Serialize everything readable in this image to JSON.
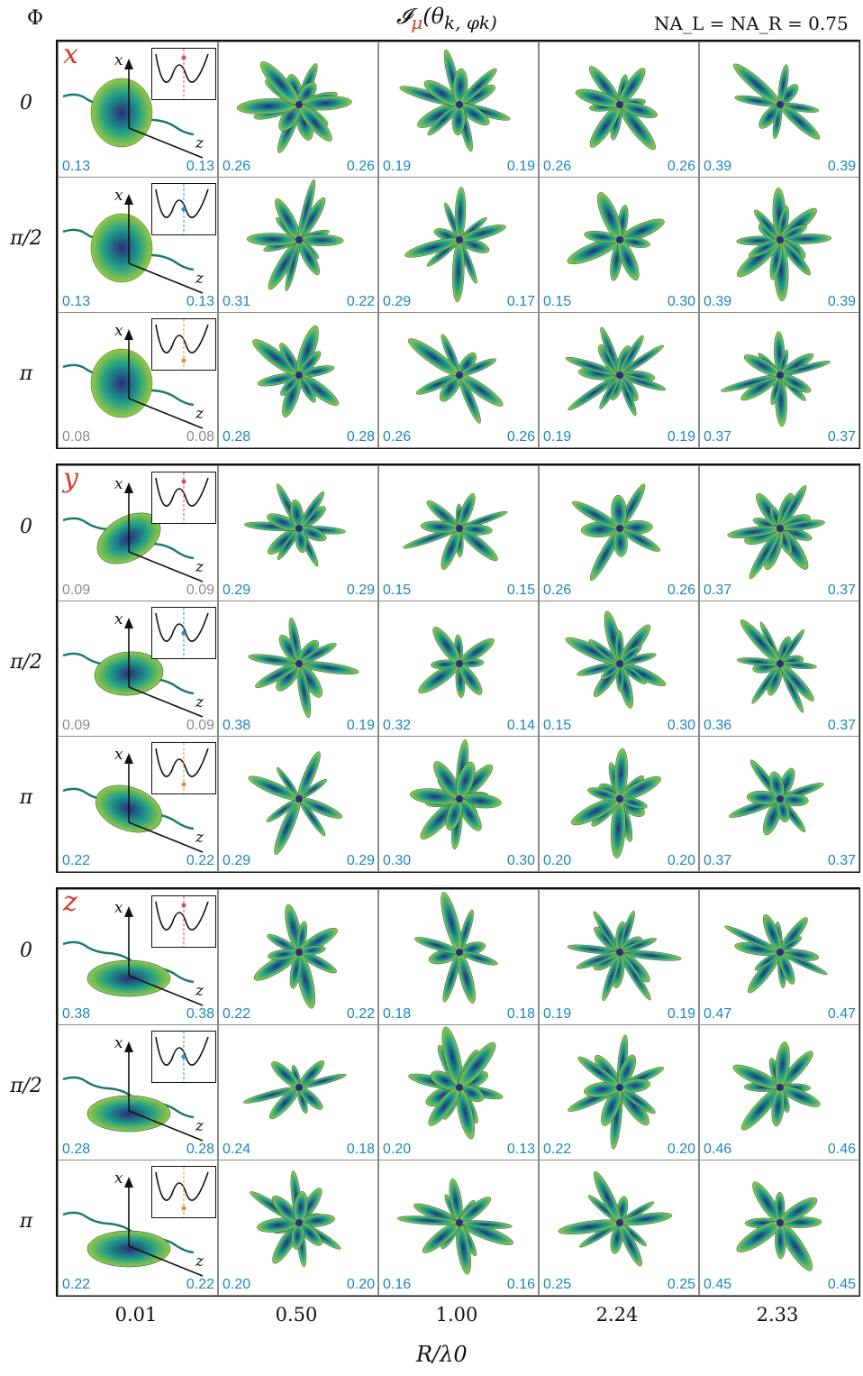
{
  "header": {
    "phi_label": "Φ",
    "title": "𝓘",
    "title_sub": "μ",
    "title_args": "(θ",
    "title_rest": "k, φk)",
    "na_label": "NA_L = NA_R = 0.75"
  },
  "colors": {
    "lobe_dark": "#2a2d7a",
    "lobe_mid": "#1d9a8a",
    "lobe_light": "#c8e020",
    "value_blue": "#1f84c4",
    "value_gray": "#8c8c8c",
    "label_red": "#d63a2a"
  },
  "x_axis": {
    "label": "R/λ0",
    "ticks": [
      "0.01",
      "0.50",
      "1.00",
      "2.24",
      "2.33"
    ]
  },
  "row_labels": [
    "0",
    "π/2",
    "π"
  ],
  "blocks": [
    {
      "label": "x",
      "rows": [
        {
          "phi": "0",
          "cells": [
            [
              "0.13",
              "0.13"
            ],
            [
              "0.26",
              "0.26"
            ],
            [
              "0.19",
              "0.19"
            ],
            [
              "0.26",
              "0.26"
            ],
            [
              "0.39",
              "0.39"
            ]
          ],
          "first_gray": false
        },
        {
          "phi": "π/2",
          "cells": [
            [
              "0.13",
              "0.13"
            ],
            [
              "0.31",
              "0.22"
            ],
            [
              "0.29",
              "0.17"
            ],
            [
              "0.15",
              "0.30"
            ],
            [
              "0.39",
              "0.39"
            ]
          ],
          "first_gray": false
        },
        {
          "phi": "π",
          "cells": [
            [
              "0.08",
              "0.08"
            ],
            [
              "0.28",
              "0.28"
            ],
            [
              "0.26",
              "0.26"
            ],
            [
              "0.19",
              "0.19"
            ],
            [
              "0.37",
              "0.37"
            ]
          ],
          "first_gray": true
        }
      ]
    },
    {
      "label": "y",
      "rows": [
        {
          "phi": "0",
          "cells": [
            [
              "0.09",
              "0.09"
            ],
            [
              "0.29",
              "0.29"
            ],
            [
              "0.15",
              "0.15"
            ],
            [
              "0.26",
              "0.26"
            ],
            [
              "0.37",
              "0.37"
            ]
          ],
          "first_gray": true
        },
        {
          "phi": "π/2",
          "cells": [
            [
              "0.09",
              "0.09"
            ],
            [
              "0.38",
              "0.19"
            ],
            [
              "0.32",
              "0.14"
            ],
            [
              "0.15",
              "0.30"
            ],
            [
              "0.36",
              "0.37"
            ]
          ],
          "first_gray": true
        },
        {
          "phi": "π",
          "cells": [
            [
              "0.22",
              "0.22"
            ],
            [
              "0.29",
              "0.29"
            ],
            [
              "0.30",
              "0.30"
            ],
            [
              "0.20",
              "0.20"
            ],
            [
              "0.37",
              "0.37"
            ]
          ],
          "first_gray": false
        }
      ]
    },
    {
      "label": "z",
      "rows": [
        {
          "phi": "0",
          "cells": [
            [
              "0.38",
              "0.38"
            ],
            [
              "0.22",
              "0.22"
            ],
            [
              "0.18",
              "0.18"
            ],
            [
              "0.19",
              "0.19"
            ],
            [
              "0.47",
              "0.47"
            ]
          ],
          "first_gray": false
        },
        {
          "phi": "π/2",
          "cells": [
            [
              "0.28",
              "0.28"
            ],
            [
              "0.24",
              "0.18"
            ],
            [
              "0.20",
              "0.13"
            ],
            [
              "0.22",
              "0.20"
            ],
            [
              "0.46",
              "0.46"
            ]
          ],
          "first_gray": false
        },
        {
          "phi": "π",
          "cells": [
            [
              "0.22",
              "0.22"
            ],
            [
              "0.20",
              "0.20"
            ],
            [
              "0.16",
              "0.16"
            ],
            [
              "0.25",
              "0.25"
            ],
            [
              "0.45",
              "0.45"
            ]
          ],
          "first_gray": false
        }
      ]
    }
  ],
  "axis_labels": {
    "x": "x",
    "z": "z"
  }
}
